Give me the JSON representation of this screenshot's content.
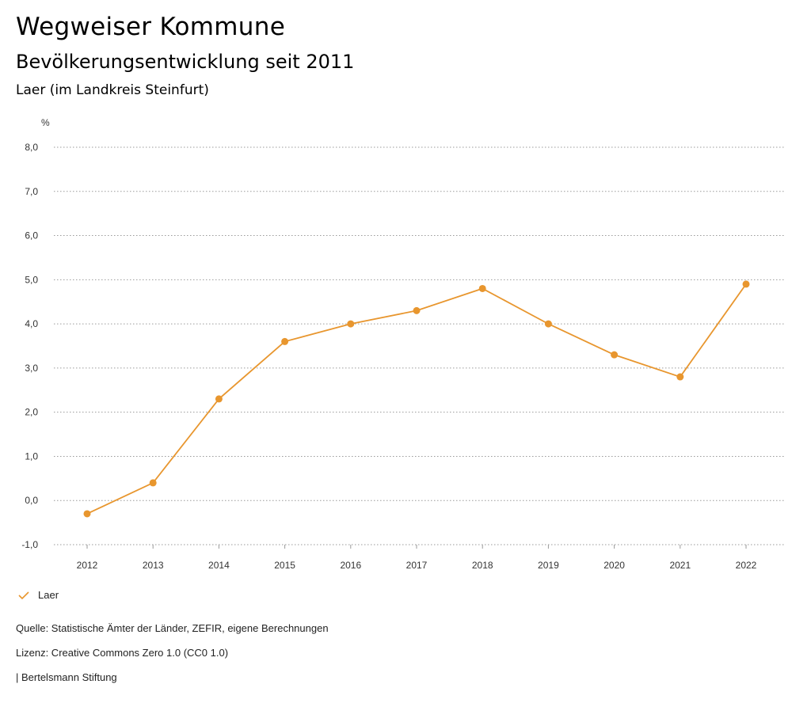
{
  "header": {
    "title": "Wegweiser Kommune",
    "subtitle": "Bevölkerungsentwicklung seit 2011",
    "region": "Laer (im Landkreis Steinfurt)"
  },
  "chart_data": {
    "type": "line",
    "unit_label": "%",
    "categories": [
      "2012",
      "2013",
      "2014",
      "2015",
      "2016",
      "2017",
      "2018",
      "2019",
      "2020",
      "2021",
      "2022"
    ],
    "series": [
      {
        "name": "Laer",
        "color": "#e8962e",
        "values": [
          -0.3,
          0.4,
          2.3,
          3.6,
          4.0,
          4.3,
          4.8,
          4.0,
          3.3,
          2.8,
          4.9
        ]
      }
    ],
    "yticks": [
      -1.0,
      0.0,
      1.0,
      2.0,
      3.0,
      4.0,
      5.0,
      6.0,
      7.0,
      8.0
    ],
    "ylim": [
      -1.0,
      8.0
    ],
    "grid": true,
    "legend": "bottom-left",
    "title": "Bevölkerungsentwicklung seit 2011"
  },
  "legend": {
    "label": "Laer"
  },
  "footer": {
    "source": "Quelle: Statistische Ämter der Länder, ZEFIR, eigene Berechnungen",
    "license": "Lizenz: Creative Commons Zero 1.0 (CC0 1.0)",
    "publisher": "| Bertelsmann Stiftung"
  }
}
